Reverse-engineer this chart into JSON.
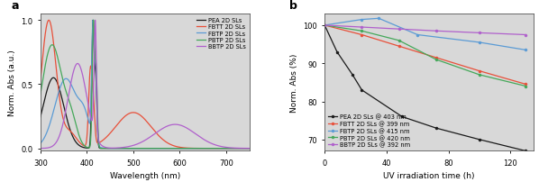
{
  "panel_a": {
    "xlabel": "Wavelength (nm)",
    "ylabel": "Norm. Abs (a.u.)",
    "xlim": [
      300,
      750
    ],
    "ylim": [
      -0.02,
      1.05
    ],
    "yticks": [
      0.0,
      0.5,
      1.0
    ],
    "xticks": [
      300,
      400,
      500,
      600,
      700
    ],
    "series": [
      {
        "label": "PEA 2D SLs",
        "color": "#1a1a1a"
      },
      {
        "label": "FBTT 2D SLs",
        "color": "#e8503a"
      },
      {
        "label": "FBTP 2D SLs",
        "color": "#5b9bd5"
      },
      {
        "label": "PBTP 2D SLs",
        "color": "#45a85a"
      },
      {
        "label": "BBTP 2D SLs",
        "color": "#b060cc"
      }
    ]
  },
  "panel_b": {
    "xlabel": "UV irradiation time (h)",
    "ylabel": "Norm. Abs (%)",
    "xlim": [
      0,
      135
    ],
    "ylim": [
      67,
      103
    ],
    "yticks": [
      70,
      80,
      90,
      100
    ],
    "xticks": [
      0,
      40,
      80,
      120
    ],
    "series": [
      {
        "label": "PEA 2D SLs @ 403 nm",
        "color": "#1a1a1a",
        "x": [
          0,
          8,
          18,
          24,
          50,
          72,
          100,
          130
        ],
        "y": [
          100,
          93,
          87,
          83,
          76,
          73,
          70,
          67
        ]
      },
      {
        "label": "FBTT 2D SLs @ 399 nm",
        "color": "#e8503a",
        "x": [
          0,
          24,
          48,
          72,
          100,
          130
        ],
        "y": [
          100,
          97.5,
          94.5,
          91.5,
          88,
          84.5
        ]
      },
      {
        "label": "FBTP 2D SLs @ 415 nm",
        "color": "#5b9bd5",
        "x": [
          0,
          24,
          35,
          60,
          100,
          130
        ],
        "y": [
          100,
          101.5,
          101.8,
          97.5,
          95.5,
          93.5
        ]
      },
      {
        "label": "PBTP 2D SLs @ 420 nm",
        "color": "#45a85a",
        "x": [
          0,
          24,
          48,
          72,
          100,
          130
        ],
        "y": [
          100,
          98.5,
          96,
          91,
          87,
          84
        ]
      },
      {
        "label": "BBTP 2D SLs @ 392 nm",
        "color": "#b060cc",
        "x": [
          0,
          24,
          48,
          72,
          100,
          130
        ],
        "y": [
          100,
          99.5,
          99,
          98.5,
          98,
          97.5
        ]
      }
    ]
  },
  "bg_color": "#d8d8d8",
  "fig_bg": "#f0f0f0"
}
